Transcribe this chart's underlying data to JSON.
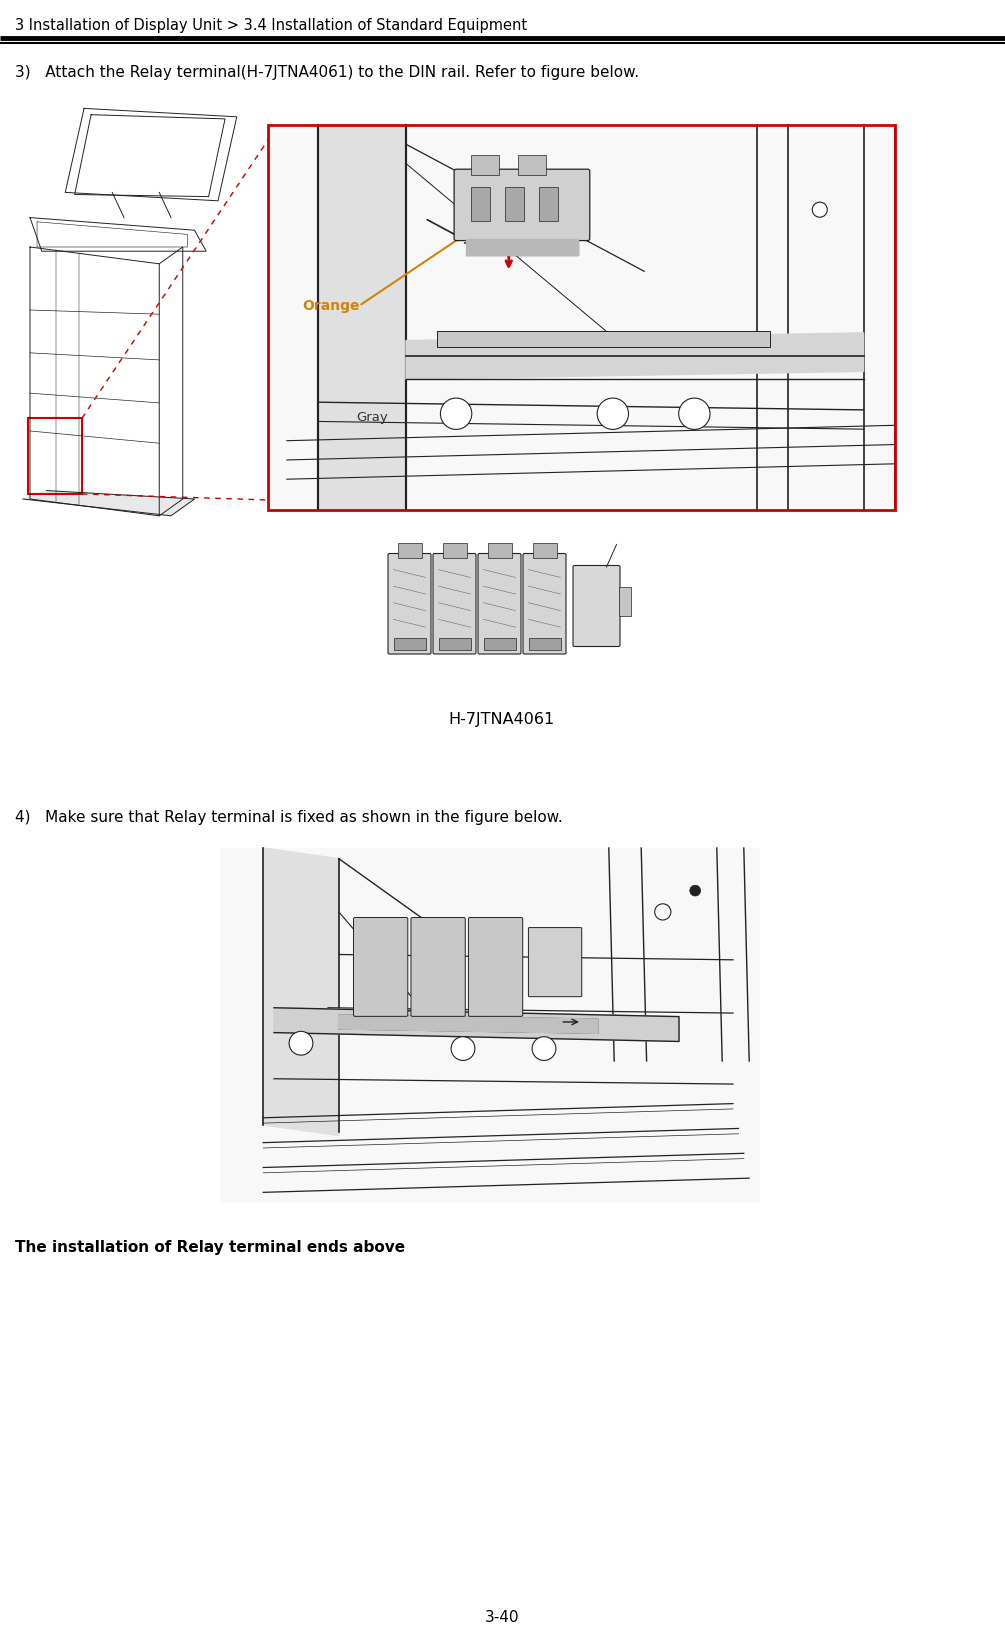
{
  "bg_color": "#ffffff",
  "header_text": "3 Installation of Display Unit > 3.4 Installation of Standard Equipment",
  "header_fontsize": 10.5,
  "step3_text": "3)   Attach the Relay terminal(H-7JTNA4061) to the DIN rail. Refer to figure below.",
  "step4_text": "4)   Make sure that Relay terminal is fixed as shown in the figure below.",
  "footer_text": "The installation of Relay terminal ends above",
  "page_number": "3-40",
  "label_orange": "Orange",
  "label_gray": "Gray",
  "label_part": "H-7JTNA4061",
  "orange_color": "#D4820A",
  "red_color": "#CC0000",
  "lc": "#222222",
  "lc_light": "#555555"
}
